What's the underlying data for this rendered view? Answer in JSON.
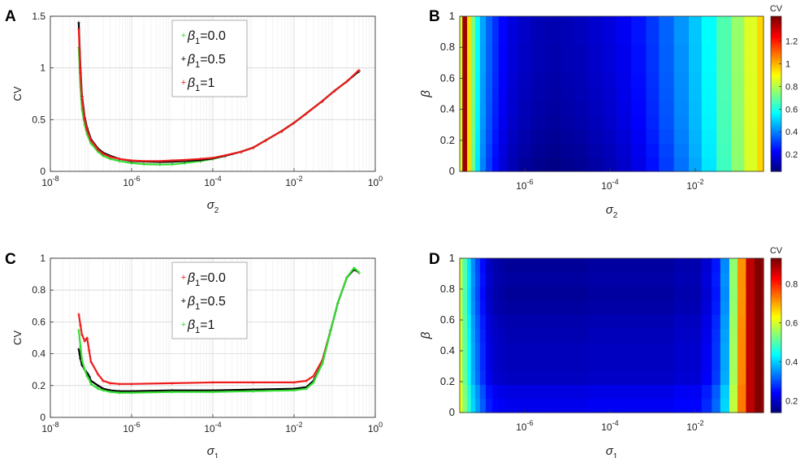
{
  "panel_labels": [
    "A",
    "B",
    "C",
    "D"
  ],
  "chart_data": [
    {
      "panel": "A",
      "type": "line",
      "xscale": "log",
      "xlim": [
        1e-08,
        1
      ],
      "ylim": [
        0,
        1.5
      ],
      "xticks": [
        1e-08,
        1e-06,
        0.0001,
        0.01,
        1
      ],
      "xtick_labels": [
        [
          "10",
          "-8"
        ],
        [
          "10",
          "-6"
        ],
        [
          "10",
          "-4"
        ],
        [
          "10",
          "-2"
        ],
        [
          "10",
          "0"
        ]
      ],
      "yticks": [
        0,
        0.5,
        1,
        1.5
      ],
      "ytick_labels": [
        "0",
        "0.5",
        "1",
        "1.5"
      ],
      "xlabel": [
        "σ",
        "2"
      ],
      "ylabel": "CV",
      "grid": true,
      "legend_position": "top-center",
      "series": [
        {
          "name": "β1=0.0",
          "label": [
            "β",
            "1",
            "=0.0"
          ],
          "color": "#33dd33",
          "x": [
            5e-08,
            5.5e-08,
            6e-08,
            7e-08,
            8e-08,
            1e-07,
            1.5e-07,
            2e-07,
            3e-07,
            5e-07,
            1e-06,
            2e-06,
            5e-06,
            1e-05,
            2e-05,
            5e-05,
            0.0001,
            0.0002,
            0.0005,
            0.001,
            0.002,
            0.005,
            0.01,
            0.02,
            0.05,
            0.1,
            0.2,
            0.4
          ],
          "y": [
            1.2,
            0.82,
            0.6,
            0.45,
            0.36,
            0.27,
            0.19,
            0.15,
            0.12,
            0.1,
            0.08,
            0.07,
            0.065,
            0.068,
            0.08,
            0.1,
            0.12,
            0.15,
            0.19,
            0.23,
            0.3,
            0.39,
            0.47,
            0.56,
            0.68,
            0.78,
            0.87,
            0.97
          ]
        },
        {
          "name": "β1=0.5",
          "label": [
            "β",
            "1",
            "=0.5"
          ],
          "color": "#000000",
          "x": [
            5e-08,
            5.5e-08,
            6e-08,
            7e-08,
            8e-08,
            1e-07,
            1.5e-07,
            2e-07,
            3e-07,
            5e-07,
            1e-06,
            2e-06,
            5e-06,
            1e-05,
            2e-05,
            5e-05,
            0.0001,
            0.0002,
            0.0005,
            0.001,
            0.002,
            0.005,
            0.01,
            0.02,
            0.05,
            0.1,
            0.2,
            0.4
          ],
          "y": [
            1.44,
            1.0,
            0.73,
            0.52,
            0.42,
            0.31,
            0.22,
            0.18,
            0.15,
            0.12,
            0.1,
            0.095,
            0.09,
            0.093,
            0.1,
            0.11,
            0.125,
            0.15,
            0.19,
            0.23,
            0.3,
            0.39,
            0.47,
            0.56,
            0.68,
            0.78,
            0.87,
            0.97
          ]
        },
        {
          "name": "β1=1",
          "label": [
            "β",
            "1",
            "=1"
          ],
          "color": "#ee1c1c",
          "x": [
            5e-08,
            5.5e-08,
            6e-08,
            7e-08,
            8e-08,
            1e-07,
            1.5e-07,
            2e-07,
            3e-07,
            5e-07,
            1e-06,
            2e-06,
            5e-06,
            1e-05,
            2e-05,
            5e-05,
            0.0001,
            0.0002,
            0.0005,
            0.001,
            0.002,
            0.005,
            0.01,
            0.02,
            0.05,
            0.1,
            0.2,
            0.4
          ],
          "y": [
            1.38,
            0.96,
            0.7,
            0.5,
            0.4,
            0.3,
            0.21,
            0.17,
            0.14,
            0.12,
            0.105,
            0.1,
            0.1,
            0.105,
            0.11,
            0.12,
            0.13,
            0.155,
            0.19,
            0.23,
            0.3,
            0.39,
            0.47,
            0.56,
            0.68,
            0.78,
            0.87,
            0.98
          ]
        }
      ]
    },
    {
      "panel": "B",
      "type": "heatmap",
      "xscale": "log",
      "xlim": [
        3e-08,
        0.4
      ],
      "ylim": [
        0,
        1
      ],
      "xticks": [
        1e-06,
        0.0001,
        0.01
      ],
      "xtick_labels": [
        [
          "10",
          "-6"
        ],
        [
          "10",
          "-4"
        ],
        [
          "10",
          "-2"
        ]
      ],
      "yticks": [
        0,
        0.2,
        0.4,
        0.6,
        0.8,
        1
      ],
      "ytick_labels": [
        "0",
        "0.2",
        "0.4",
        "0.6",
        "0.8",
        "1"
      ],
      "xlabel": [
        "σ",
        "2"
      ],
      "ylabel": "β",
      "colorbar_title": "CV",
      "colorbar_range": [
        0.05,
        1.42
      ],
      "colorbar_ticks": [
        0.2,
        0.4,
        0.6,
        0.8,
        1,
        1.2
      ],
      "colorbar_tick_labels": [
        "0.2",
        "0.4",
        "0.6",
        "0.8",
        "1",
        "1.2"
      ],
      "x_columns": [
        3e-08,
        4e-08,
        5e-08,
        6e-08,
        8e-08,
        1e-07,
        1.5e-07,
        2e-07,
        3e-07,
        5e-07,
        1e-06,
        2e-06,
        5e-06,
        1e-05,
        2e-05,
        5e-05,
        0.0001,
        0.0002,
        0.0005,
        0.001,
        0.002,
        0.005,
        0.01,
        0.02,
        0.05,
        0.1,
        0.2,
        0.4
      ],
      "profile": [
        0.85,
        1.38,
        0.95,
        0.72,
        0.55,
        0.42,
        0.33,
        0.26,
        0.2,
        0.15,
        0.12,
        0.1,
        0.09,
        0.1,
        0.11,
        0.13,
        0.15,
        0.18,
        0.22,
        0.27,
        0.33,
        0.4,
        0.47,
        0.55,
        0.66,
        0.76,
        0.86,
        0.96
      ],
      "beta_rows": [
        0,
        0.1,
        0.2,
        0.3,
        0.4,
        0.5,
        0.6,
        0.7,
        0.8,
        0.9,
        1.0
      ],
      "beta_offsets": [
        -0.03,
        -0.02,
        -0.01,
        0.0,
        0.005,
        0.01,
        0.015,
        0.02,
        0.02,
        0.025,
        0.025
      ]
    },
    {
      "panel": "C",
      "type": "line",
      "xscale": "log",
      "xlim": [
        1e-08,
        1
      ],
      "ylim": [
        0,
        1
      ],
      "xticks": [
        1e-08,
        1e-06,
        0.0001,
        0.01,
        1
      ],
      "xtick_labels": [
        [
          "10",
          "-8"
        ],
        [
          "10",
          "-6"
        ],
        [
          "10",
          "-4"
        ],
        [
          "10",
          "-2"
        ],
        [
          "10",
          "0"
        ]
      ],
      "yticks": [
        0,
        0.2,
        0.4,
        0.6,
        0.8,
        1
      ],
      "ytick_labels": [
        "0",
        "0.2",
        "0.4",
        "0.6",
        "0.8",
        "1"
      ],
      "xlabel": [
        "σ",
        "1"
      ],
      "ylabel": "CV",
      "grid": true,
      "legend_position": "top-center",
      "series": [
        {
          "name": "β1=0.0",
          "label": [
            "β",
            "1",
            "=0.0"
          ],
          "color": "#ee1c1c",
          "x": [
            5e-08,
            5.5e-08,
            6e-08,
            7e-08,
            8e-08,
            9e-08,
            1e-07,
            1.5e-07,
            2e-07,
            3e-07,
            5e-07,
            1e-06,
            1e-05,
            0.0001,
            0.001,
            0.01,
            0.02,
            0.03,
            0.05,
            0.08,
            0.12,
            0.2,
            0.3,
            0.4
          ],
          "y": [
            0.65,
            0.58,
            0.52,
            0.48,
            0.5,
            0.42,
            0.35,
            0.27,
            0.23,
            0.215,
            0.21,
            0.21,
            0.215,
            0.22,
            0.22,
            0.22,
            0.23,
            0.26,
            0.36,
            0.55,
            0.72,
            0.88,
            0.93,
            0.91
          ]
        },
        {
          "name": "β1=0.5",
          "label": [
            "β",
            "1",
            "=0.5"
          ],
          "color": "#000000",
          "x": [
            5e-08,
            5.5e-08,
            6e-08,
            7e-08,
            8e-08,
            9e-08,
            1e-07,
            1.5e-07,
            2e-07,
            3e-07,
            5e-07,
            1e-06,
            1e-05,
            0.0001,
            0.001,
            0.01,
            0.02,
            0.03,
            0.05,
            0.08,
            0.12,
            0.2,
            0.3,
            0.4
          ],
          "y": [
            0.43,
            0.37,
            0.33,
            0.3,
            0.28,
            0.26,
            0.23,
            0.2,
            0.18,
            0.17,
            0.165,
            0.165,
            0.17,
            0.17,
            0.175,
            0.18,
            0.19,
            0.23,
            0.34,
            0.55,
            0.72,
            0.88,
            0.93,
            0.91
          ]
        },
        {
          "name": "β1=1",
          "label": [
            "β",
            "1",
            "=1"
          ],
          "color": "#33dd33",
          "x": [
            5e-08,
            5.5e-08,
            6e-08,
            7e-08,
            8e-08,
            9e-08,
            1e-07,
            1.5e-07,
            2e-07,
            3e-07,
            5e-07,
            1e-06,
            1e-05,
            0.0001,
            0.001,
            0.01,
            0.02,
            0.03,
            0.05,
            0.08,
            0.12,
            0.2,
            0.3,
            0.4
          ],
          "y": [
            0.55,
            0.45,
            0.36,
            0.3,
            0.26,
            0.24,
            0.21,
            0.18,
            0.17,
            0.16,
            0.155,
            0.155,
            0.16,
            0.16,
            0.165,
            0.17,
            0.18,
            0.22,
            0.34,
            0.55,
            0.72,
            0.88,
            0.94,
            0.91
          ]
        }
      ]
    },
    {
      "panel": "D",
      "type": "heatmap",
      "xscale": "log",
      "xlim": [
        3e-08,
        0.4
      ],
      "ylim": [
        0,
        1
      ],
      "xticks": [
        1e-06,
        0.0001,
        0.01
      ],
      "xtick_labels": [
        [
          "10",
          "-6"
        ],
        [
          "10",
          "-4"
        ],
        [
          "10",
          "-2"
        ]
      ],
      "yticks": [
        0,
        0.2,
        0.4,
        0.6,
        0.8,
        1
      ],
      "ytick_labels": [
        "0",
        "0.2",
        "0.4",
        "0.6",
        "0.8",
        "1"
      ],
      "xlabel": [
        "σ",
        "1"
      ],
      "ylabel": "β",
      "colorbar_title": "CV",
      "colorbar_range": [
        0.14,
        0.93
      ],
      "colorbar_ticks": [
        0.2,
        0.4,
        0.6,
        0.8
      ],
      "colorbar_tick_labels": [
        "0.2",
        "0.4",
        "0.6",
        "0.8"
      ],
      "x_columns": [
        3e-08,
        4e-08,
        5e-08,
        6e-08,
        8e-08,
        1e-07,
        1.5e-07,
        2e-07,
        3e-07,
        5e-07,
        1e-06,
        1e-05,
        0.0001,
        0.001,
        0.01,
        0.02,
        0.03,
        0.05,
        0.08,
        0.12,
        0.2,
        0.3,
        0.4
      ],
      "profile": [
        0.6,
        0.5,
        0.42,
        0.35,
        0.3,
        0.25,
        0.2,
        0.18,
        0.17,
        0.165,
        0.165,
        0.165,
        0.17,
        0.17,
        0.18,
        0.21,
        0.26,
        0.35,
        0.55,
        0.72,
        0.88,
        0.93,
        0.91
      ],
      "beta_rows": [
        0,
        0.1,
        0.2,
        0.3,
        0.4,
        0.5,
        0.6,
        0.7,
        0.8,
        0.9,
        1.0
      ],
      "beta_offsets": [
        0.06,
        0.05,
        0.025,
        0.02,
        0.02,
        0.015,
        0.01,
        0.0,
        -0.005,
        0.0,
        -0.005
      ]
    }
  ]
}
